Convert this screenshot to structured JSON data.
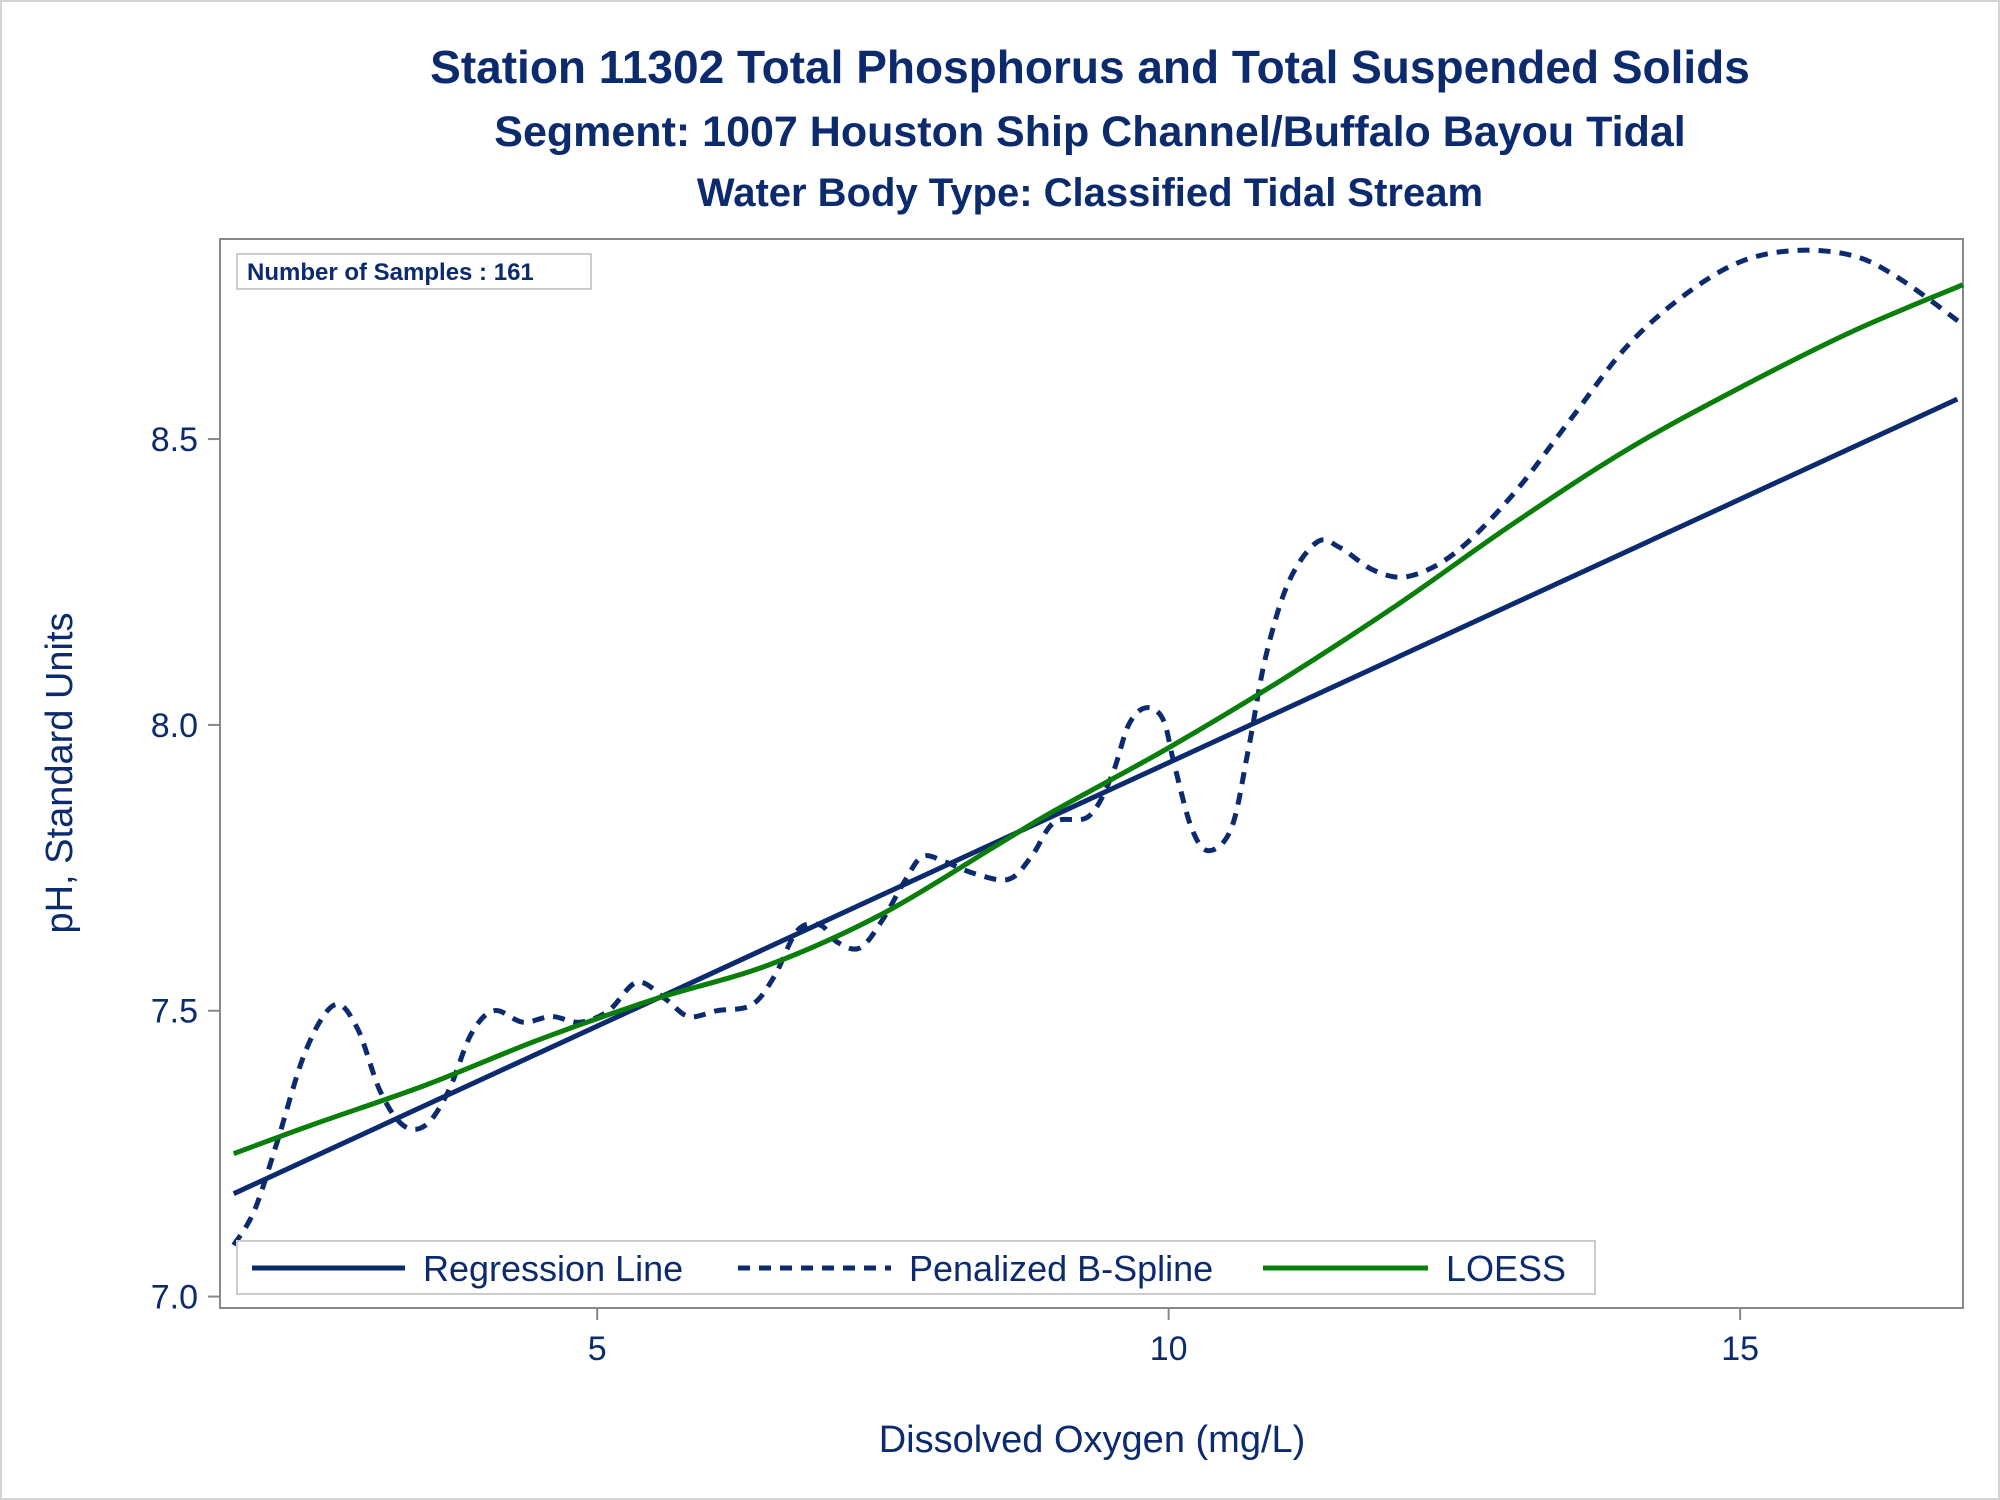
{
  "titles": {
    "line1": "Station 11302  Total Phosphorus and Total Suspended Solids",
    "line2": "Segment: 1007  Houston Ship Channel/Buffalo Bayou Tidal",
    "line3": "Water Body Type: Classified Tidal Stream"
  },
  "inset": {
    "samples_label": "Number of Samples : 161"
  },
  "colors": {
    "text": "#0c2a6e",
    "regression": "#0c2a6e",
    "spline": "#0c2a6e",
    "loess": "#0a7e0a",
    "frame": "#888888"
  },
  "chart_data": {
    "type": "line",
    "xlabel": "Dissolved Oxygen (mg/L)",
    "ylabel": "pH, Standard Units",
    "xlim": [
      1.7,
      16.95
    ],
    "ylim": [
      6.98,
      8.85
    ],
    "x_ticks": [
      5,
      10,
      15
    ],
    "x_tick_labels": [
      "5",
      "10",
      "15"
    ],
    "y_ticks": [
      7.0,
      7.5,
      8.0,
      8.5
    ],
    "y_tick_labels": [
      "7.0",
      "7.5",
      "8.0",
      "8.5"
    ],
    "grid": false,
    "legend": "bottom-left",
    "series": [
      {
        "name": "Regression Line",
        "style": "solid",
        "color": "#0c2a6e",
        "points": [
          [
            1.82,
            7.18
          ],
          [
            16.9,
            8.57
          ]
        ]
      },
      {
        "name": "Penalized B-Spline",
        "style": "dashed",
        "color": "#0c2a6e",
        "points": [
          [
            1.82,
            7.09
          ],
          [
            2.0,
            7.15
          ],
          [
            2.2,
            7.27
          ],
          [
            2.45,
            7.43
          ],
          [
            2.7,
            7.51
          ],
          [
            2.9,
            7.47
          ],
          [
            3.1,
            7.36
          ],
          [
            3.3,
            7.3
          ],
          [
            3.5,
            7.3
          ],
          [
            3.7,
            7.36
          ],
          [
            3.9,
            7.46
          ],
          [
            4.1,
            7.5
          ],
          [
            4.35,
            7.48
          ],
          [
            4.6,
            7.49
          ],
          [
            4.85,
            7.48
          ],
          [
            5.1,
            7.5
          ],
          [
            5.35,
            7.55
          ],
          [
            5.6,
            7.52
          ],
          [
            5.8,
            7.49
          ],
          [
            6.05,
            7.5
          ],
          [
            6.35,
            7.51
          ],
          [
            6.55,
            7.56
          ],
          [
            6.75,
            7.64
          ],
          [
            6.95,
            7.65
          ],
          [
            7.1,
            7.62
          ],
          [
            7.3,
            7.61
          ],
          [
            7.5,
            7.66
          ],
          [
            7.7,
            7.73
          ],
          [
            7.85,
            7.77
          ],
          [
            8.05,
            7.76
          ],
          [
            8.3,
            7.74
          ],
          [
            8.6,
            7.73
          ],
          [
            8.8,
            7.77
          ],
          [
            9.0,
            7.83
          ],
          [
            9.3,
            7.84
          ],
          [
            9.5,
            7.91
          ],
          [
            9.65,
            8.0
          ],
          [
            9.8,
            8.03
          ],
          [
            9.95,
            8.01
          ],
          [
            10.05,
            7.93
          ],
          [
            10.2,
            7.82
          ],
          [
            10.35,
            7.78
          ],
          [
            10.55,
            7.82
          ],
          [
            10.7,
            7.96
          ],
          [
            10.85,
            8.12
          ],
          [
            11.05,
            8.25
          ],
          [
            11.3,
            8.32
          ],
          [
            11.5,
            8.31
          ],
          [
            11.8,
            8.27
          ],
          [
            12.1,
            8.26
          ],
          [
            12.5,
            8.3
          ],
          [
            13.0,
            8.4
          ],
          [
            13.5,
            8.53
          ],
          [
            14.0,
            8.66
          ],
          [
            14.5,
            8.75
          ],
          [
            15.0,
            8.81
          ],
          [
            15.5,
            8.83
          ],
          [
            16.0,
            8.82
          ],
          [
            16.4,
            8.78
          ],
          [
            16.95,
            8.7
          ]
        ]
      },
      {
        "name": "LOESS",
        "style": "solid",
        "color": "#0a7e0a",
        "points": [
          [
            1.82,
            7.25
          ],
          [
            2.5,
            7.3
          ],
          [
            3.5,
            7.37
          ],
          [
            4.5,
            7.45
          ],
          [
            5.5,
            7.52
          ],
          [
            6.5,
            7.58
          ],
          [
            7.5,
            7.67
          ],
          [
            8.5,
            7.79
          ],
          [
            9.0,
            7.85
          ],
          [
            10.0,
            7.96
          ],
          [
            11.0,
            8.08
          ],
          [
            12.0,
            8.21
          ],
          [
            13.0,
            8.35
          ],
          [
            14.0,
            8.48
          ],
          [
            15.0,
            8.59
          ],
          [
            16.0,
            8.69
          ],
          [
            16.95,
            8.77
          ]
        ]
      }
    ]
  }
}
